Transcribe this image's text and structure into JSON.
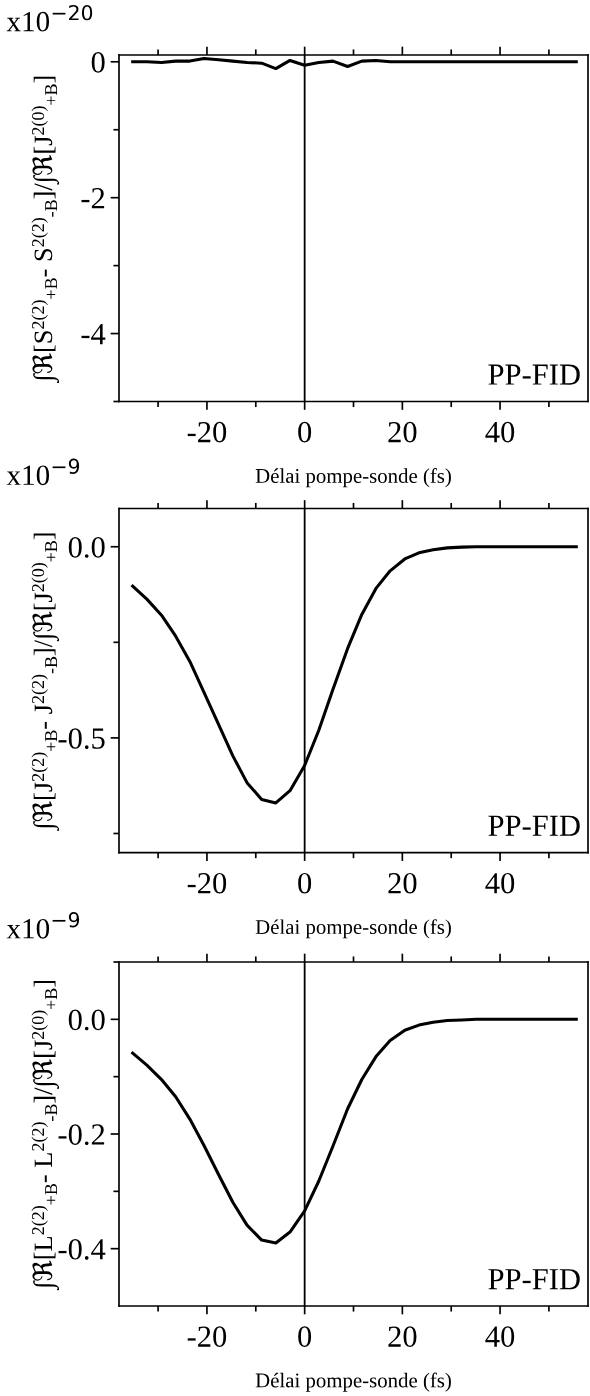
{
  "chart_data": [
    {
      "type": "line",
      "xlabel": "Délai pompe-sonde (fs)",
      "ylabel": "∫ℜ[S$^{2(2)}$$_{+B}$- S$^{2(2)}$$_{-B}$]/∫ℜ[J$^{2(0)}$$_{+B}$]",
      "annotations": [
        "x10$^{−20}$",
        "PP-FID"
      ],
      "x": [
        -35.2,
        -32.3,
        -29.3,
        -26.4,
        -23.5,
        -20.6,
        -17.6,
        -14.7,
        -11.8,
        -8.8,
        -5.9,
        -3.0,
        0.0,
        2.9,
        5.8,
        8.8,
        11.7,
        14.6,
        17.5,
        20.5,
        23.4,
        26.3,
        29.2,
        32.2,
        35.1,
        38.0,
        41.0,
        43.9,
        46.8,
        49.7,
        52.7,
        55.6
      ],
      "series": [
        {
          "color": "#000000",
          "values": [
            0,
            0,
            -0.01,
            0.01,
            0.01,
            0.05,
            0.03,
            0.01,
            -0.01,
            -0.02,
            -0.1,
            0.02,
            -0.05,
            -0.01,
            0.01,
            -0.07,
            0.01,
            0.02,
            0,
            0,
            0,
            0,
            0,
            0,
            0,
            0,
            0,
            0,
            0,
            0,
            0,
            0
          ]
        }
      ],
      "xlim": [
        -38,
        58
      ],
      "xticks": [
        -20,
        0,
        20,
        40
      ],
      "ylim": [
        -5,
        0.1
      ],
      "yticks": [
        0,
        -2,
        -4
      ],
      "ref_lines": [
        {
          "axis": "x",
          "value": 0,
          "color": "#000000"
        }
      ],
      "marker": "none",
      "line_style": "solid",
      "grid": false,
      "legend": false
    },
    {
      "type": "line",
      "xlabel": "Délai pompe-sonde (fs)",
      "ylabel": "∫ℜ[J$^{2(2)}$$_{+B}$- J$^{2(2)}$$_{-B}$]/∫ℜ[J$^{2(0)}$$_{+B}$]",
      "annotations": [
        "x10$^{−9}$",
        "PP-FID"
      ],
      "x": [
        -35.2,
        -32.3,
        -29.3,
        -26.4,
        -23.5,
        -20.6,
        -17.6,
        -14.7,
        -11.8,
        -8.8,
        -5.9,
        -3.0,
        0.0,
        2.9,
        5.8,
        8.8,
        11.7,
        14.6,
        17.5,
        20.5,
        23.4,
        26.3,
        29.2,
        32.2,
        35.1,
        38.0,
        41.0,
        43.9,
        46.8,
        49.7,
        52.7,
        55.6
      ],
      "series": [
        {
          "color": "#000000",
          "values": [
            -0.103,
            -0.137,
            -0.179,
            -0.234,
            -0.3,
            -0.381,
            -0.465,
            -0.547,
            -0.617,
            -0.661,
            -0.67,
            -0.638,
            -0.572,
            -0.48,
            -0.373,
            -0.266,
            -0.177,
            -0.109,
            -0.063,
            -0.032,
            -0.016,
            -0.008,
            -0.003,
            -0.001,
            0,
            0,
            0,
            0,
            0,
            0,
            0,
            0
          ]
        }
      ],
      "xlim": [
        -38,
        58
      ],
      "xticks": [
        -20,
        0,
        20,
        40
      ],
      "ylim": [
        -0.8,
        0.1
      ],
      "yticks": [
        {
          "value": 0,
          "label": "0.0"
        },
        -0.5
      ],
      "ref_lines": [
        {
          "axis": "x",
          "value": 0,
          "color": "#000000"
        }
      ],
      "marker": "none",
      "line_style": "solid",
      "grid": false,
      "legend": false
    },
    {
      "type": "line",
      "xlabel": "Délai pompe-sonde (fs)",
      "ylabel": "∫ℜ[L$^{2(2)}$$_{+B}$- L$^{2(2)}$$_{-B}$]/∫ℜ[J$^{2(0)}$$_{+B}$]",
      "annotations": [
        "x10$^{−9}$",
        "PP-FID"
      ],
      "x": [
        -35.2,
        -32.3,
        -29.3,
        -26.4,
        -23.5,
        -20.6,
        -17.6,
        -14.7,
        -11.8,
        -8.8,
        -5.9,
        -3.0,
        0.0,
        2.9,
        5.8,
        8.8,
        11.7,
        14.6,
        17.5,
        20.5,
        23.4,
        26.3,
        29.2,
        32.2,
        35.1,
        38.0,
        41.0,
        43.9,
        46.8,
        49.7,
        52.7,
        55.6
      ],
      "series": [
        {
          "color": "#000000",
          "values": [
            -0.059,
            -0.08,
            -0.105,
            -0.135,
            -0.174,
            -0.22,
            -0.271,
            -0.319,
            -0.359,
            -0.385,
            -0.39,
            -0.371,
            -0.334,
            -0.282,
            -0.221,
            -0.156,
            -0.105,
            -0.065,
            -0.037,
            -0.019,
            -0.01,
            -0.005,
            -0.002,
            -0.001,
            0,
            0,
            0,
            0,
            0,
            0,
            0,
            0
          ]
        }
      ],
      "xlim": [
        -38,
        58
      ],
      "xticks": [
        -20,
        0,
        20,
        40
      ],
      "ylim": [
        -0.5,
        0.1
      ],
      "yticks": [
        {
          "value": 0,
          "label": "0.0"
        },
        -0.2,
        -0.4
      ],
      "ref_lines": [
        {
          "axis": "x",
          "value": 0,
          "color": "#000000"
        }
      ],
      "marker": "none",
      "line_style": "solid",
      "grid": false,
      "legend": false
    }
  ]
}
